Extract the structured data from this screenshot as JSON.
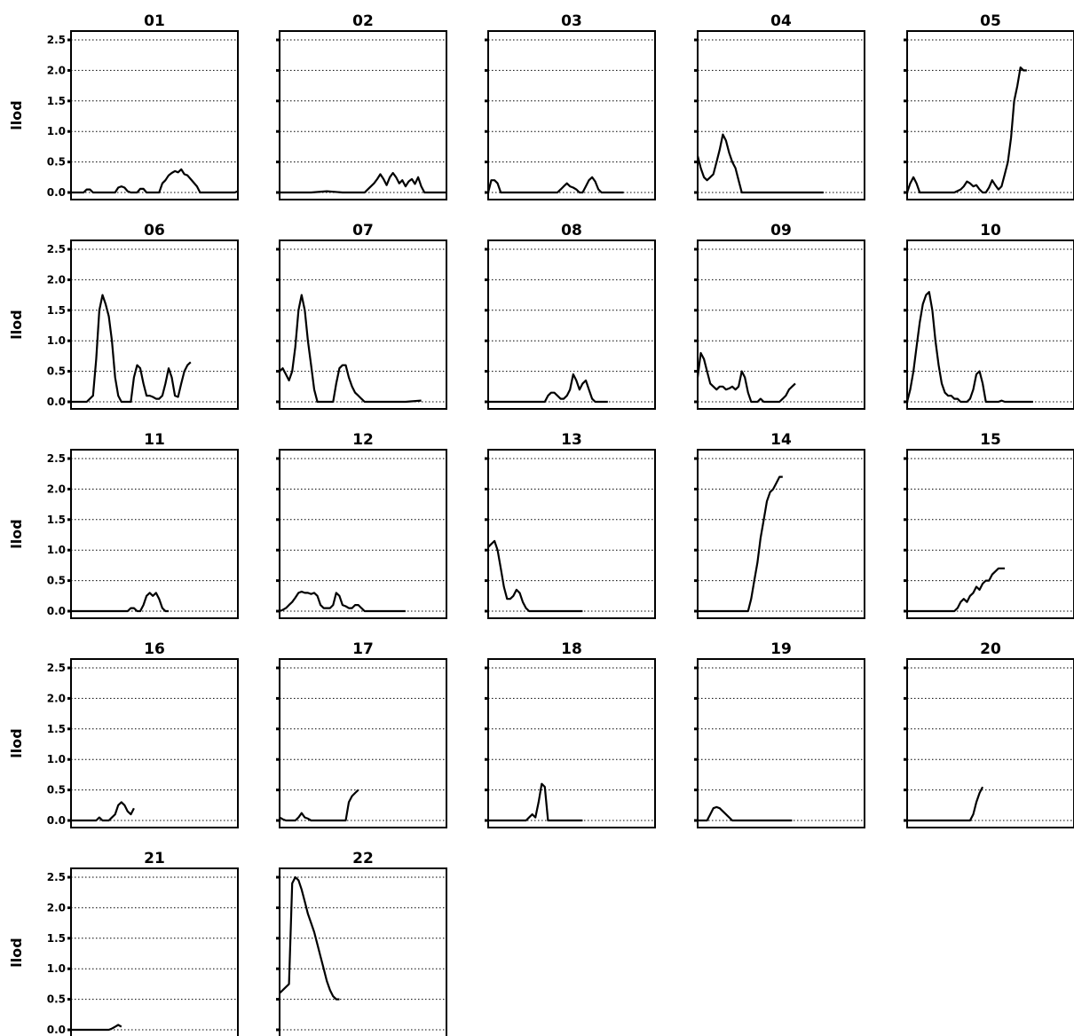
{
  "chart_data": [
    {
      "type": "line",
      "title": "01",
      "ylabel": "llod",
      "ylim": [
        0,
        2.5
      ],
      "yticks": [
        "0.0",
        "0.5",
        "1.0",
        "1.5",
        "2.0",
        "2.5"
      ],
      "grid": "horizontal-dotted",
      "x": [
        0,
        4,
        5,
        6,
        7,
        8,
        14,
        15,
        16,
        17,
        18,
        19,
        21,
        22,
        23,
        24,
        25,
        26,
        27,
        28,
        29,
        30,
        31,
        32,
        33,
        34,
        35,
        36,
        37,
        38,
        40,
        41,
        42,
        43,
        44,
        45,
        46,
        47,
        48,
        49,
        50,
        51,
        52,
        53
      ],
      "y": [
        0,
        0,
        0.05,
        0.05,
        0,
        0,
        0,
        0.08,
        0.1,
        0.08,
        0.02,
        0,
        0,
        0.06,
        0.06,
        0,
        0,
        0,
        0,
        0,
        0.15,
        0.2,
        0.28,
        0.32,
        0.35,
        0.33,
        0.38,
        0.3,
        0.28,
        0.22,
        0.1,
        0,
        0,
        0,
        0,
        0,
        0,
        0,
        0,
        0,
        0,
        0,
        0,
        0.02
      ]
    },
    {
      "type": "line",
      "title": "02",
      "ylabel": "",
      "ylim": [
        0,
        2.5
      ],
      "grid": "horizontal-dotted",
      "x": [
        0,
        10,
        15,
        20,
        23,
        25,
        27,
        28,
        29,
        30,
        31,
        32,
        33,
        34,
        35,
        36,
        37,
        38,
        39,
        40,
        41,
        42,
        43,
        44,
        45,
        46,
        47,
        48,
        49,
        50,
        51,
        52,
        53
      ],
      "y": [
        0,
        0,
        0.02,
        0,
        0,
        0,
        0,
        0.05,
        0.1,
        0.15,
        0.22,
        0.3,
        0.22,
        0.12,
        0.25,
        0.32,
        0.25,
        0.15,
        0.2,
        0.1,
        0.18,
        0.22,
        0.14,
        0.25,
        0.1,
        0,
        0,
        0,
        0,
        0,
        0,
        0,
        0
      ]
    },
    {
      "type": "line",
      "title": "03",
      "ylabel": "",
      "ylim": [
        0,
        2.5
      ],
      "grid": "horizontal-dotted",
      "x": [
        0,
        1,
        2,
        3,
        4,
        5,
        6,
        10,
        15,
        20,
        22,
        23,
        24,
        25,
        26,
        27,
        28,
        29,
        30,
        31,
        32,
        33,
        34,
        35,
        36,
        37,
        38,
        39,
        40,
        41,
        42,
        43
      ],
      "y": [
        0,
        0.2,
        0.2,
        0.15,
        0,
        0,
        0,
        0,
        0,
        0,
        0,
        0.05,
        0.1,
        0.15,
        0.1,
        0.08,
        0.05,
        0,
        0,
        0.1,
        0.2,
        0.25,
        0.18,
        0.05,
        0,
        0,
        0,
        0,
        0,
        0,
        0,
        0
      ]
    },
    {
      "type": "line",
      "title": "04",
      "ylabel": "",
      "ylim": [
        0,
        2.5
      ],
      "grid": "horizontal-dotted",
      "x": [
        0,
        1,
        2,
        3,
        4,
        5,
        6,
        7,
        8,
        9,
        10,
        11,
        12,
        13,
        14,
        15,
        16,
        17,
        18,
        20,
        25,
        30,
        35,
        40
      ],
      "y": [
        0.6,
        0.4,
        0.25,
        0.2,
        0.25,
        0.3,
        0.5,
        0.7,
        0.95,
        0.85,
        0.65,
        0.5,
        0.4,
        0.2,
        0,
        0,
        0,
        0,
        0,
        0,
        0,
        0,
        0,
        0
      ]
    },
    {
      "type": "line",
      "title": "05",
      "ylabel": "",
      "ylim": [
        0,
        2.5
      ],
      "grid": "horizontal-dotted",
      "x": [
        0,
        1,
        2,
        3,
        4,
        5,
        6,
        10,
        15,
        17,
        18,
        19,
        20,
        21,
        22,
        23,
        24,
        25,
        26,
        27,
        28,
        29,
        30,
        31,
        32,
        33,
        34,
        35,
        36,
        37,
        38
      ],
      "y": [
        0,
        0.15,
        0.25,
        0.15,
        0,
        0,
        0,
        0,
        0,
        0.05,
        0.1,
        0.18,
        0.15,
        0.1,
        0.12,
        0.05,
        0,
        0,
        0.08,
        0.2,
        0.12,
        0.05,
        0.1,
        0.3,
        0.5,
        0.9,
        1.5,
        1.75,
        2.05,
        2.0,
        2.0
      ]
    },
    {
      "type": "line",
      "title": "06",
      "ylabel": "llod",
      "ylim": [
        0,
        2.5
      ],
      "yticks": [
        "0.0",
        "0.5",
        "1.0",
        "1.5",
        "2.0",
        "2.5"
      ],
      "grid": "horizontal-dotted",
      "x": [
        0,
        5,
        7,
        8,
        9,
        10,
        11,
        12,
        13,
        14,
        15,
        16,
        17,
        18,
        19,
        20,
        21,
        22,
        23,
        24,
        25,
        26,
        27,
        28,
        29,
        30,
        31,
        32,
        33,
        34,
        35,
        36,
        37,
        38
      ],
      "y": [
        0,
        0,
        0.1,
        0.7,
        1.5,
        1.75,
        1.6,
        1.4,
        1.0,
        0.4,
        0.1,
        0,
        0,
        0,
        0,
        0.4,
        0.6,
        0.55,
        0.3,
        0.1,
        0.1,
        0.08,
        0.05,
        0.05,
        0.1,
        0.3,
        0.55,
        0.4,
        0.1,
        0.08,
        0.3,
        0.5,
        0.6,
        0.65
      ]
    },
    {
      "type": "line",
      "title": "07",
      "ylabel": "",
      "ylim": [
        0,
        2.5
      ],
      "grid": "horizontal-dotted",
      "x": [
        0,
        1,
        2,
        3,
        4,
        5,
        6,
        7,
        8,
        9,
        10,
        11,
        12,
        13,
        14,
        15,
        16,
        17,
        18,
        19,
        20,
        21,
        22,
        23,
        24,
        25,
        26,
        27,
        28,
        29,
        30,
        35,
        40,
        45
      ],
      "y": [
        0.5,
        0.55,
        0.45,
        0.35,
        0.5,
        0.9,
        1.5,
        1.75,
        1.5,
        1.0,
        0.6,
        0.2,
        0,
        0,
        0,
        0,
        0,
        0,
        0.3,
        0.55,
        0.6,
        0.6,
        0.4,
        0.25,
        0.15,
        0.1,
        0.05,
        0,
        0,
        0,
        0,
        0,
        0,
        0.02
      ]
    },
    {
      "type": "line",
      "title": "08",
      "ylabel": "",
      "ylim": [
        0,
        2.5
      ],
      "grid": "horizontal-dotted",
      "x": [
        0,
        5,
        10,
        15,
        18,
        19,
        20,
        21,
        22,
        23,
        24,
        25,
        26,
        27,
        28,
        29,
        30,
        31,
        32,
        33,
        34,
        35,
        36,
        37,
        38
      ],
      "y": [
        0,
        0,
        0,
        0,
        0,
        0.1,
        0.15,
        0.15,
        0.1,
        0.05,
        0.05,
        0.1,
        0.2,
        0.45,
        0.35,
        0.2,
        0.3,
        0.35,
        0.2,
        0.05,
        0,
        0,
        0,
        0,
        0
      ]
    },
    {
      "type": "line",
      "title": "09",
      "ylabel": "",
      "ylim": [
        0,
        2.5
      ],
      "grid": "horizontal-dotted",
      "x": [
        0,
        1,
        2,
        3,
        4,
        5,
        6,
        7,
        8,
        9,
        10,
        11,
        12,
        13,
        14,
        15,
        16,
        17,
        18,
        19,
        20,
        21,
        22,
        23,
        24,
        25,
        26,
        27,
        28,
        29,
        30,
        31
      ],
      "y": [
        0.4,
        0.8,
        0.7,
        0.5,
        0.3,
        0.25,
        0.2,
        0.25,
        0.25,
        0.2,
        0.22,
        0.25,
        0.2,
        0.25,
        0.5,
        0.4,
        0.15,
        0,
        0,
        0,
        0.05,
        0,
        0,
        0,
        0,
        0,
        0,
        0.05,
        0.1,
        0.2,
        0.25,
        0.3
      ]
    },
    {
      "type": "line",
      "title": "10",
      "ylabel": "",
      "ylim": [
        0,
        2.5
      ],
      "grid": "horizontal-dotted",
      "x": [
        0,
        1,
        2,
        3,
        4,
        5,
        6,
        7,
        8,
        9,
        10,
        11,
        12,
        13,
        14,
        15,
        16,
        17,
        18,
        19,
        20,
        21,
        22,
        23,
        24,
        25,
        26,
        27,
        28,
        29,
        30,
        31,
        32,
        33,
        34,
        35,
        40
      ],
      "y": [
        0,
        0.2,
        0.5,
        0.9,
        1.3,
        1.6,
        1.75,
        1.8,
        1.5,
        1.0,
        0.6,
        0.3,
        0.15,
        0.1,
        0.1,
        0.05,
        0.05,
        0,
        0,
        0,
        0.05,
        0.2,
        0.45,
        0.5,
        0.3,
        0,
        0,
        0,
        0,
        0,
        0.02,
        0,
        0,
        0,
        0,
        0,
        0
      ]
    },
    {
      "type": "line",
      "title": "11",
      "ylabel": "llod",
      "ylim": [
        0,
        2.5
      ],
      "yticks": [
        "0.0",
        "0.5",
        "1.0",
        "1.5",
        "2.0",
        "2.5"
      ],
      "grid": "horizontal-dotted",
      "x": [
        0,
        10,
        15,
        18,
        19,
        20,
        21,
        22,
        23,
        24,
        25,
        26,
        27,
        28,
        29,
        30,
        31
      ],
      "y": [
        0,
        0,
        0,
        0,
        0.05,
        0.05,
        0,
        0,
        0.1,
        0.25,
        0.3,
        0.25,
        0.3,
        0.2,
        0.05,
        0,
        0
      ]
    },
    {
      "type": "line",
      "title": "12",
      "ylabel": "",
      "ylim": [
        0,
        2.5
      ],
      "grid": "horizontal-dotted",
      "x": [
        0,
        1,
        2,
        3,
        4,
        5,
        6,
        7,
        8,
        9,
        10,
        11,
        12,
        13,
        14,
        15,
        16,
        17,
        18,
        19,
        20,
        21,
        22,
        23,
        24,
        25,
        26,
        27,
        28,
        29,
        30,
        35,
        40
      ],
      "y": [
        0,
        0.02,
        0.05,
        0.1,
        0.15,
        0.22,
        0.3,
        0.32,
        0.3,
        0.3,
        0.28,
        0.3,
        0.25,
        0.1,
        0.05,
        0.05,
        0.05,
        0.1,
        0.3,
        0.25,
        0.1,
        0.08,
        0.05,
        0.05,
        0.1,
        0.1,
        0.05,
        0,
        0,
        0,
        0,
        0,
        0
      ]
    },
    {
      "type": "line",
      "title": "13",
      "ylabel": "",
      "ylim": [
        0,
        2.5
      ],
      "grid": "horizontal-dotted",
      "x": [
        0,
        1,
        2,
        3,
        4,
        5,
        6,
        7,
        8,
        9,
        10,
        11,
        12,
        13,
        14,
        15,
        20,
        25,
        30
      ],
      "y": [
        1.05,
        1.1,
        1.15,
        1.0,
        0.7,
        0.4,
        0.2,
        0.2,
        0.25,
        0.35,
        0.3,
        0.15,
        0.05,
        0,
        0,
        0,
        0,
        0,
        0
      ]
    },
    {
      "type": "line",
      "title": "14",
      "ylabel": "",
      "ylim": [
        0,
        2.5
      ],
      "grid": "horizontal-dotted",
      "x": [
        0,
        5,
        10,
        15,
        16,
        17,
        18,
        19,
        20,
        21,
        22,
        23,
        24,
        25,
        26,
        27
      ],
      "y": [
        0,
        0,
        0,
        0,
        0,
        0.2,
        0.5,
        0.8,
        1.2,
        1.5,
        1.8,
        1.95,
        2.0,
        2.1,
        2.2,
        2.2
      ]
    },
    {
      "type": "line",
      "title": "15",
      "ylabel": "",
      "ylim": [
        0,
        2.5
      ],
      "grid": "horizontal-dotted",
      "x": [
        0,
        5,
        10,
        15,
        16,
        17,
        18,
        19,
        20,
        21,
        22,
        23,
        24,
        25,
        26,
        27,
        28,
        29,
        30,
        31
      ],
      "y": [
        0,
        0,
        0,
        0,
        0.05,
        0.15,
        0.2,
        0.15,
        0.25,
        0.3,
        0.4,
        0.35,
        0.45,
        0.5,
        0.5,
        0.6,
        0.65,
        0.7,
        0.7,
        0.7
      ]
    },
    {
      "type": "line",
      "title": "16",
      "ylabel": "llod",
      "ylim": [
        0,
        2.5
      ],
      "yticks": [
        "0.0",
        "0.5",
        "1.0",
        "1.5",
        "2.0",
        "2.5"
      ],
      "grid": "horizontal-dotted",
      "x": [
        0,
        5,
        8,
        9,
        10,
        11,
        12,
        13,
        14,
        15,
        16,
        17,
        18,
        19,
        20
      ],
      "y": [
        0,
        0,
        0,
        0.05,
        0,
        0,
        0,
        0.05,
        0.1,
        0.25,
        0.3,
        0.25,
        0.15,
        0.1,
        0.2
      ]
    },
    {
      "type": "line",
      "title": "17",
      "ylabel": "",
      "ylim": [
        0,
        2.5
      ],
      "grid": "horizontal-dotted",
      "x": [
        0,
        1,
        2,
        3,
        4,
        5,
        6,
        7,
        8,
        9,
        10,
        11,
        12,
        13,
        14,
        15,
        16,
        17,
        18,
        19,
        20,
        21,
        22,
        23,
        24,
        25
      ],
      "y": [
        0.05,
        0.02,
        0,
        0,
        0,
        0,
        0.05,
        0.12,
        0.05,
        0.03,
        0,
        0,
        0,
        0,
        0,
        0,
        0,
        0,
        0,
        0,
        0,
        0,
        0.3,
        0.4,
        0.45,
        0.5
      ]
    },
    {
      "type": "line",
      "title": "18",
      "ylabel": "",
      "ylim": [
        0,
        2.5
      ],
      "grid": "horizontal-dotted",
      "x": [
        0,
        5,
        10,
        12,
        13,
        14,
        15,
        16,
        17,
        18,
        19,
        20,
        21,
        22,
        25,
        30
      ],
      "y": [
        0,
        0,
        0,
        0,
        0.05,
        0.1,
        0.05,
        0.3,
        0.6,
        0.55,
        0,
        0,
        0,
        0,
        0,
        0
      ]
    },
    {
      "type": "line",
      "title": "19",
      "ylabel": "",
      "ylim": [
        0,
        2.5
      ],
      "grid": "horizontal-dotted",
      "x": [
        0,
        1,
        2,
        3,
        4,
        5,
        6,
        7,
        8,
        9,
        10,
        11,
        12,
        15,
        20,
        25,
        30
      ],
      "y": [
        0,
        0,
        0,
        0,
        0.1,
        0.2,
        0.22,
        0.2,
        0.15,
        0.1,
        0.05,
        0,
        0,
        0,
        0,
        0,
        0
      ]
    },
    {
      "type": "line",
      "title": "20",
      "ylabel": "",
      "ylim": [
        0,
        2.5
      ],
      "grid": "horizontal-dotted",
      "x": [
        0,
        5,
        10,
        15,
        20,
        21,
        22,
        23,
        24
      ],
      "y": [
        0,
        0,
        0,
        0,
        0,
        0.1,
        0.3,
        0.45,
        0.55
      ]
    },
    {
      "type": "line",
      "title": "21",
      "ylabel": "llod",
      "ylim": [
        0,
        2.5
      ],
      "yticks": [
        "0.0",
        "0.5",
        "1.0",
        "1.5",
        "2.0",
        "2.5"
      ],
      "grid": "horizontal-dotted",
      "x": [
        0,
        5,
        10,
        12,
        13,
        14,
        15,
        16
      ],
      "y": [
        0,
        0,
        0,
        0,
        0.02,
        0.05,
        0.08,
        0.05
      ]
    },
    {
      "type": "line",
      "title": "22",
      "ylabel": "",
      "ylim": [
        0,
        2.5
      ],
      "grid": "horizontal-dotted",
      "x": [
        0,
        1,
        2,
        3,
        4,
        5,
        6,
        7,
        8,
        9,
        10,
        11,
        12,
        13,
        14,
        15,
        16,
        17,
        18,
        19
      ],
      "y": [
        0.6,
        0.65,
        0.7,
        0.75,
        2.4,
        2.5,
        2.45,
        2.3,
        2.1,
        1.9,
        1.75,
        1.6,
        1.4,
        1.2,
        1.0,
        0.8,
        0.65,
        0.55,
        0.5,
        0.5
      ]
    }
  ]
}
